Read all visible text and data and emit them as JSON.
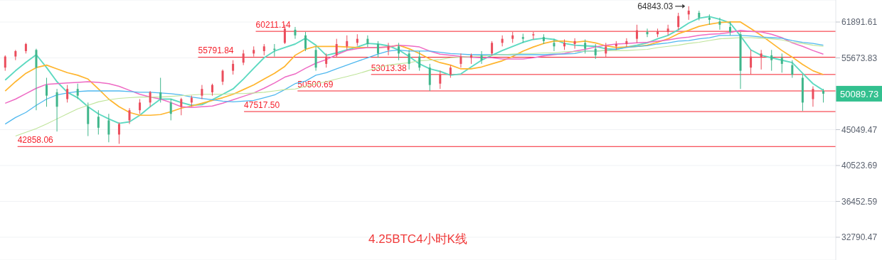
{
  "chart_data": {
    "type": "candlestick",
    "title": "4.25BTC4小时K线",
    "categories": [
      null,
      null,
      null,
      null,
      null,
      null,
      null,
      null,
      null,
      null,
      null,
      null,
      null,
      null,
      null,
      null,
      null,
      null,
      null,
      null,
      null,
      null,
      null,
      null,
      null,
      null,
      null,
      null,
      null,
      null,
      null,
      null,
      null,
      null,
      null,
      null,
      null,
      null,
      null,
      null,
      null,
      null,
      null,
      null,
      null,
      null,
      null,
      null,
      null,
      null,
      null,
      null,
      null,
      null,
      null,
      null,
      null,
      null,
      null,
      null,
      null,
      null,
      null,
      null,
      null,
      null,
      null,
      null,
      null,
      null,
      null,
      null,
      null,
      null,
      null,
      null,
      null,
      null,
      null,
      null
    ],
    "ohlc": [
      [
        54100,
        56100,
        53600,
        55900
      ],
      [
        55900,
        57000,
        55300,
        56800
      ],
      [
        56800,
        58200,
        56400,
        58000
      ],
      [
        57000,
        57200,
        47700,
        54100
      ],
      [
        51400,
        52500,
        48200,
        49800
      ],
      [
        50300,
        50800,
        44800,
        48200
      ],
      [
        49300,
        51400,
        48800,
        50800
      ],
      [
        50800,
        51600,
        49300,
        49800
      ],
      [
        48200,
        48800,
        44200,
        45800
      ],
      [
        46800,
        47700,
        44400,
        45300
      ],
      [
        46300,
        47200,
        43400,
        44400
      ],
      [
        44400,
        46000,
        43200,
        45800
      ],
      [
        46300,
        48000,
        45800,
        47700
      ],
      [
        47700,
        49300,
        47200,
        48800
      ],
      [
        48800,
        50500,
        48200,
        50300
      ],
      [
        50300,
        52500,
        48800,
        49300
      ],
      [
        48800,
        49300,
        46300,
        47200
      ],
      [
        48200,
        49500,
        47000,
        49300
      ],
      [
        48800,
        49800,
        48200,
        49500
      ],
      [
        49800,
        51400,
        49300,
        50800
      ],
      [
        50300,
        51600,
        49800,
        51400
      ],
      [
        51900,
        53800,
        51400,
        53600
      ],
      [
        53600,
        55300,
        53000,
        54700
      ],
      [
        54900,
        57000,
        54500,
        56400
      ],
      [
        56400,
        57600,
        55900,
        57000
      ],
      [
        56800,
        58000,
        56100,
        57600
      ],
      [
        57200,
        58000,
        55900,
        57000
      ],
      [
        58200,
        61400,
        58000,
        60700
      ],
      [
        60500,
        61000,
        58900,
        59500
      ],
      [
        59500,
        60100,
        56800,
        57200
      ],
      [
        57000,
        57600,
        53600,
        54100
      ],
      [
        54700,
        56400,
        54100,
        55900
      ],
      [
        56100,
        58900,
        55700,
        58000
      ],
      [
        57600,
        59500,
        57000,
        58500
      ],
      [
        58200,
        59700,
        57700,
        58900
      ],
      [
        58900,
        59500,
        57500,
        58000
      ],
      [
        58000,
        58500,
        55700,
        56400
      ],
      [
        57000,
        58200,
        56100,
        57600
      ],
      [
        57600,
        58200,
        55300,
        56400
      ],
      [
        56400,
        57000,
        53800,
        54700
      ],
      [
        55900,
        56800,
        53600,
        54100
      ],
      [
        54100,
        54700,
        50500,
        51400
      ],
      [
        51600,
        53600,
        50800,
        53000
      ],
      [
        53000,
        54500,
        52500,
        54100
      ],
      [
        54700,
        56400,
        54100,
        55900
      ],
      [
        55700,
        56400,
        54700,
        56100
      ],
      [
        56100,
        56800,
        54700,
        55300
      ],
      [
        56400,
        58500,
        56100,
        58200
      ],
      [
        58200,
        59500,
        57600,
        58900
      ],
      [
        58900,
        60100,
        58200,
        59500
      ],
      [
        59200,
        59800,
        58200,
        58900
      ],
      [
        59500,
        60100,
        58800,
        59700
      ],
      [
        59200,
        59700,
        58000,
        58500
      ],
      [
        58200,
        58900,
        56800,
        57600
      ],
      [
        57600,
        58800,
        57000,
        58200
      ],
      [
        58000,
        59000,
        57200,
        58500
      ],
      [
        58200,
        58800,
        56400,
        57200
      ],
      [
        57200,
        58000,
        55500,
        56100
      ],
      [
        56400,
        58200,
        55700,
        57600
      ],
      [
        57600,
        58500,
        57000,
        58000
      ],
      [
        58000,
        59000,
        57500,
        58500
      ],
      [
        58900,
        61400,
        58200,
        60400
      ],
      [
        60100,
        60700,
        59200,
        59700
      ],
      [
        59700,
        60700,
        59200,
        60200
      ],
      [
        60100,
        61400,
        59500,
        60700
      ],
      [
        61000,
        63600,
        60500,
        63000
      ],
      [
        63300,
        64843.03,
        62300,
        64000
      ],
      [
        63600,
        64000,
        62200,
        62700
      ],
      [
        62700,
        63300,
        61400,
        62300
      ],
      [
        62000,
        62700,
        60500,
        61400
      ],
      [
        61000,
        62000,
        59500,
        60100
      ],
      [
        59700,
        60100,
        50800,
        53600
      ],
      [
        54100,
        57000,
        53000,
        55900
      ],
      [
        55700,
        57000,
        53800,
        56400
      ],
      [
        56100,
        57000,
        53600,
        55300
      ],
      [
        55700,
        56400,
        53300,
        54700
      ],
      [
        54500,
        55300,
        52500,
        53000
      ],
      [
        52500,
        53000,
        47600,
        48800
      ],
      [
        49300,
        51200,
        48200,
        50800
      ],
      [
        50500,
        50800,
        48800,
        50089.73
      ]
    ],
    "series": [
      {
        "type": "line",
        "color": "#5dd9c1",
        "values": [
          52140,
          53600,
          54940,
          56200,
          54100,
          51900,
          50300,
          49500,
          48200,
          47200,
          46500,
          45900,
          46100,
          47000,
          48200,
          49300,
          49300,
          48800,
          48400,
          48500,
          49200,
          50000,
          50800,
          52300,
          54000,
          55700,
          56800,
          57400,
          58000,
          59000,
          57800,
          56100,
          56500,
          57000,
          57500,
          58100,
          58000,
          57700,
          57000,
          55900,
          54700,
          53900,
          53500,
          52900,
          53100,
          54200,
          55300,
          56100,
          56900,
          57600,
          58300,
          58800,
          59000,
          58800,
          58100,
          57800,
          57700,
          57600,
          57200,
          57100,
          57500,
          57800,
          58200,
          58900,
          59500,
          60500,
          61700,
          62600,
          62900,
          62400,
          61700,
          59400,
          57000,
          56100,
          55700,
          55300,
          54900,
          53200,
          51600,
          50600
        ]
      },
      {
        "type": "line",
        "color": "#ffb52e",
        "values": [
          50500,
          51900,
          53200,
          54100,
          54500,
          53900,
          53300,
          52900,
          52300,
          50800,
          49300,
          48200,
          47400,
          47000,
          47000,
          47100,
          47500,
          48000,
          48300,
          48700,
          49100,
          49500,
          50000,
          50700,
          51400,
          52300,
          53200,
          54300,
          56100,
          57100,
          57600,
          57600,
          57600,
          57500,
          57400,
          57400,
          57400,
          57500,
          57800,
          57200,
          56400,
          55500,
          54900,
          54500,
          53900,
          53900,
          54200,
          54700,
          55200,
          55900,
          56800,
          57500,
          58100,
          58500,
          58500,
          58300,
          58500,
          58200,
          57700,
          57400,
          57500,
          57600,
          57800,
          58300,
          58900,
          59800,
          60400,
          61100,
          61500,
          61800,
          61900,
          61900,
          60700,
          59500,
          58200,
          56900,
          55800,
          54600,
          53600,
          53000
        ]
      },
      {
        "type": "line",
        "color": "#ee6ac4",
        "values": [
          48700,
          49300,
          50100,
          50900,
          51500,
          51600,
          51700,
          51800,
          51900,
          51800,
          51600,
          51200,
          50600,
          50000,
          49600,
          49300,
          48800,
          48200,
          48100,
          48200,
          48300,
          48700,
          49200,
          49700,
          50200,
          50900,
          51700,
          52600,
          53100,
          54000,
          54800,
          55400,
          56200,
          56900,
          57200,
          57400,
          57400,
          57500,
          57800,
          57700,
          57500,
          56800,
          56300,
          56100,
          55900,
          55800,
          55700,
          55700,
          55500,
          55500,
          55500,
          55700,
          56000,
          56200,
          56400,
          56800,
          57100,
          57500,
          57800,
          58000,
          58100,
          58200,
          58300,
          58500,
          58700,
          59000,
          59200,
          59500,
          59700,
          59800,
          60000,
          60400,
          60200,
          60100,
          59700,
          59100,
          58200,
          57600,
          56900,
          56300
        ]
      },
      {
        "type": "line",
        "color": "#4fb8ef",
        "values": [
          45800,
          46700,
          47400,
          48400,
          49300,
          49900,
          50200,
          50400,
          50500,
          50500,
          50500,
          50500,
          50400,
          50300,
          50300,
          50200,
          50100,
          49900,
          49600,
          49400,
          49200,
          49000,
          48900,
          49000,
          49100,
          49500,
          49900,
          50700,
          51600,
          52000,
          52900,
          53300,
          53900,
          54500,
          55100,
          55700,
          56300,
          56800,
          57000,
          56800,
          56800,
          56800,
          56600,
          56400,
          56300,
          56200,
          56200,
          56200,
          56200,
          56200,
          56200,
          56200,
          56200,
          56300,
          56300,
          56400,
          56800,
          56800,
          56900,
          57100,
          57400,
          57600,
          57700,
          58000,
          58200,
          58500,
          58600,
          58900,
          59100,
          59500,
          59500,
          59500,
          59400,
          59200,
          59100,
          59000,
          58600,
          58300,
          58100,
          57800
        ]
      },
      {
        "type": "line",
        "color": "#bfe49a",
        "values": [
          null,
          44200,
          44700,
          45200,
          45800,
          46500,
          47200,
          47900,
          48400,
          48900,
          49200,
          49400,
          49500,
          49600,
          49600,
          49600,
          49700,
          49800,
          49900,
          50000,
          50000,
          50000,
          50100,
          50100,
          50200,
          50300,
          50500,
          50700,
          50800,
          51200,
          51600,
          51900,
          52300,
          52700,
          53100,
          53600,
          54100,
          54500,
          54700,
          54900,
          55200,
          55300,
          55400,
          55700,
          55800,
          55900,
          56000,
          56100,
          56200,
          56300,
          56400,
          56400,
          56500,
          56500,
          56700,
          56700,
          56800,
          56800,
          56900,
          56900,
          56900,
          57000,
          57100,
          57400,
          57600,
          57800,
          58100,
          58300,
          58600,
          58900,
          59000,
          59100,
          59100,
          59000,
          58900,
          58700,
          58300,
          58100,
          57800,
          57600
        ]
      }
    ],
    "ylim": [
      30660,
      66050
    ],
    "yticks": [
      32790.47,
      36452.59,
      40523.69,
      45049.47,
      55673.83,
      61891.61
    ],
    "log": true,
    "grid": "y",
    "ref_lines": [
      {
        "axis": "y",
        "value": 60211.14,
        "label": "60211.14",
        "color": "#f5222d"
      },
      {
        "axis": "y",
        "value": 55791.84,
        "label": "55791.84",
        "color": "#f5222d"
      },
      {
        "axis": "y",
        "value": 53013.38,
        "label": "53013.38",
        "color": "#f5222d"
      },
      {
        "axis": "y",
        "value": 50500.69,
        "label": "50500.69",
        "color": "#f5222d"
      },
      {
        "axis": "y",
        "value": 47517.5,
        "label": "47517.50",
        "color": "#f5222d"
      },
      {
        "axis": "y",
        "value": 42858.06,
        "label": "42858.06",
        "color": "#f5222d"
      }
    ],
    "annotations": [
      "64843.03",
      "50089.73"
    ]
  }
}
